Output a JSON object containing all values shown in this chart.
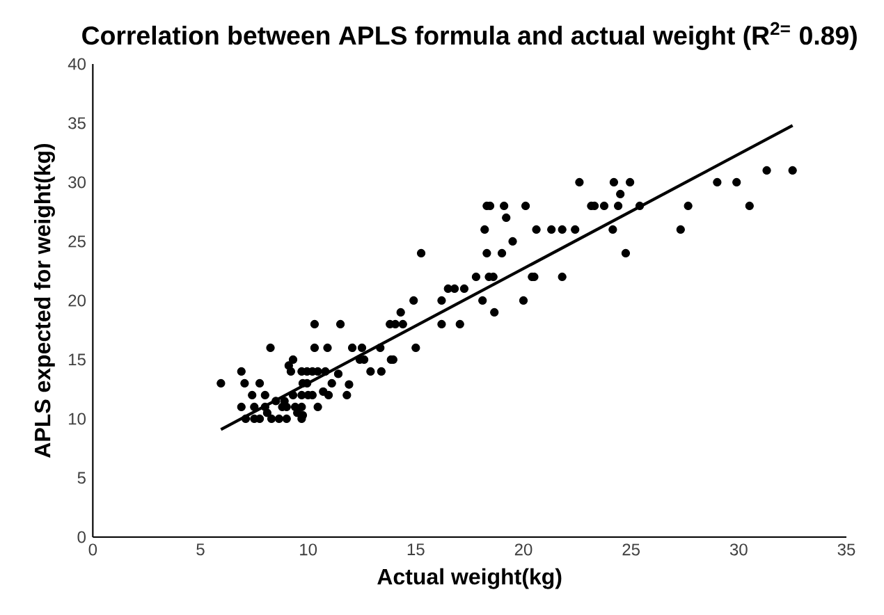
{
  "chart_data": {
    "type": "scatter",
    "title": "Correlation between APLS formula and actual weight (R$^{2=}$ 0.89)",
    "xlabel": "Actual weight(kg)",
    "ylabel": "APLS expected for weight(kg)",
    "xlim": [
      0,
      35
    ],
    "ylim": [
      0,
      40
    ],
    "xticks": [
      0,
      5,
      10,
      15,
      20,
      25,
      30,
      35
    ],
    "yticks": [
      0,
      5,
      10,
      15,
      20,
      25,
      30,
      35,
      40
    ],
    "grid": false,
    "series": [
      {
        "marker": "circle",
        "color": "#000000",
        "x": [
          5.95,
          6.9,
          7.05,
          6.9,
          7.4,
          7.5,
          7.1,
          7.75,
          7.75,
          8.0,
          8.25,
          8.0,
          8.3,
          8.5,
          8.8,
          8.65,
          9.0,
          9.1,
          9.3,
          9.2,
          9.0,
          9.7,
          9.3,
          9.7,
          9.95,
          9.75,
          9.7,
          9.7,
          10.2,
          10.3,
          10.3,
          10.2,
          10.45,
          10.8,
          10.45,
          10.7,
          10.95,
          10.9,
          11.1,
          11.4,
          11.5,
          11.8,
          11.9,
          12.05,
          12.5,
          12.4,
          12.6,
          12.9,
          13.35,
          13.4,
          13.85,
          13.95,
          13.8,
          14.05,
          14.3,
          14.4,
          14.9,
          15.0,
          15.25,
          16.2,
          16.2,
          16.5,
          16.8,
          17.05,
          17.25,
          17.8,
          18.1,
          18.2,
          18.3,
          18.3,
          18.45,
          18.4,
          18.6,
          18.65,
          19.0,
          19.1,
          19.2,
          19.5,
          20.0,
          20.1,
          20.4,
          20.5,
          20.6,
          21.3,
          21.8,
          21.8,
          22.4,
          22.6,
          23.15,
          23.3,
          23.75,
          24.15,
          24.2,
          24.4,
          24.5,
          24.75,
          24.95,
          25.4,
          27.3,
          27.65,
          29.0,
          29.9,
          30.5,
          31.3,
          32.5,
          7.5,
          8.1,
          9.5,
          9.4,
          8.9,
          9.95,
          9.75,
          10.0
        ],
        "values": [
          13,
          14,
          13,
          11,
          12,
          11,
          10,
          13,
          10,
          12,
          16,
          11,
          10,
          11.5,
          11,
          10,
          11,
          14.5,
          15,
          14,
          10,
          12,
          12,
          14,
          14,
          13,
          10,
          11,
          12,
          18,
          16,
          14,
          14,
          14,
          11,
          12.3,
          12,
          16,
          13,
          13.8,
          18,
          12,
          12.9,
          16,
          16,
          15,
          15,
          14,
          16,
          14,
          15,
          15,
          18,
          18,
          19,
          18,
          20,
          16,
          24,
          20,
          18,
          21,
          21,
          18,
          21,
          22,
          20,
          26,
          24,
          28,
          28,
          22,
          22,
          19,
          24,
          28,
          27,
          25,
          20,
          28,
          22,
          22,
          26,
          26,
          26,
          22,
          26,
          30,
          28,
          28,
          28,
          26,
          30,
          28,
          29,
          24,
          30,
          28,
          26,
          28,
          30,
          30,
          28,
          31,
          31,
          10,
          10.5,
          10.5,
          11,
          11.5,
          13,
          10.3,
          12
        ]
      },
      {
        "type": "line",
        "marker": "none",
        "color": "#000000",
        "x": [
          5.95,
          32.5
        ],
        "values": [
          9.1,
          34.8
        ]
      }
    ]
  }
}
